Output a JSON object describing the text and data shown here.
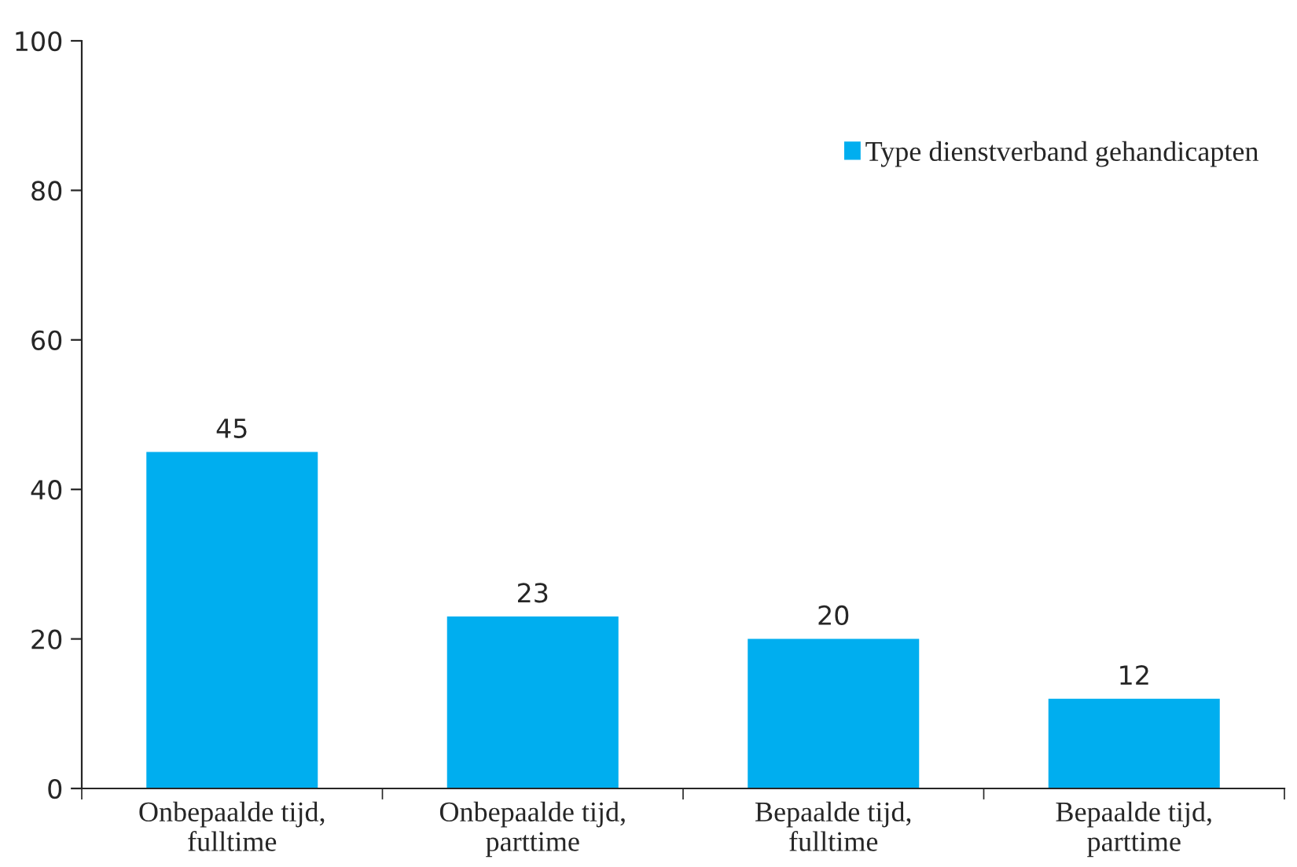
{
  "chart_data": {
    "type": "bar",
    "categories": [
      "Onbepaalde tijd,\nfulltime",
      "Onbepaalde tijd,\nparttime",
      "Bepaalde tijd,\nfulltime",
      "Bepaalde tijd,\nparttime"
    ],
    "series": [
      {
        "name": "Type dienstverband gehandicapten",
        "color": "#00aeef",
        "values": [
          45,
          23,
          20,
          12
        ]
      }
    ],
    "ylim": [
      0,
      100
    ],
    "yticks": [
      0,
      20,
      40,
      60,
      80,
      100
    ],
    "data_labels": true,
    "grid": false,
    "legend": "top right"
  }
}
